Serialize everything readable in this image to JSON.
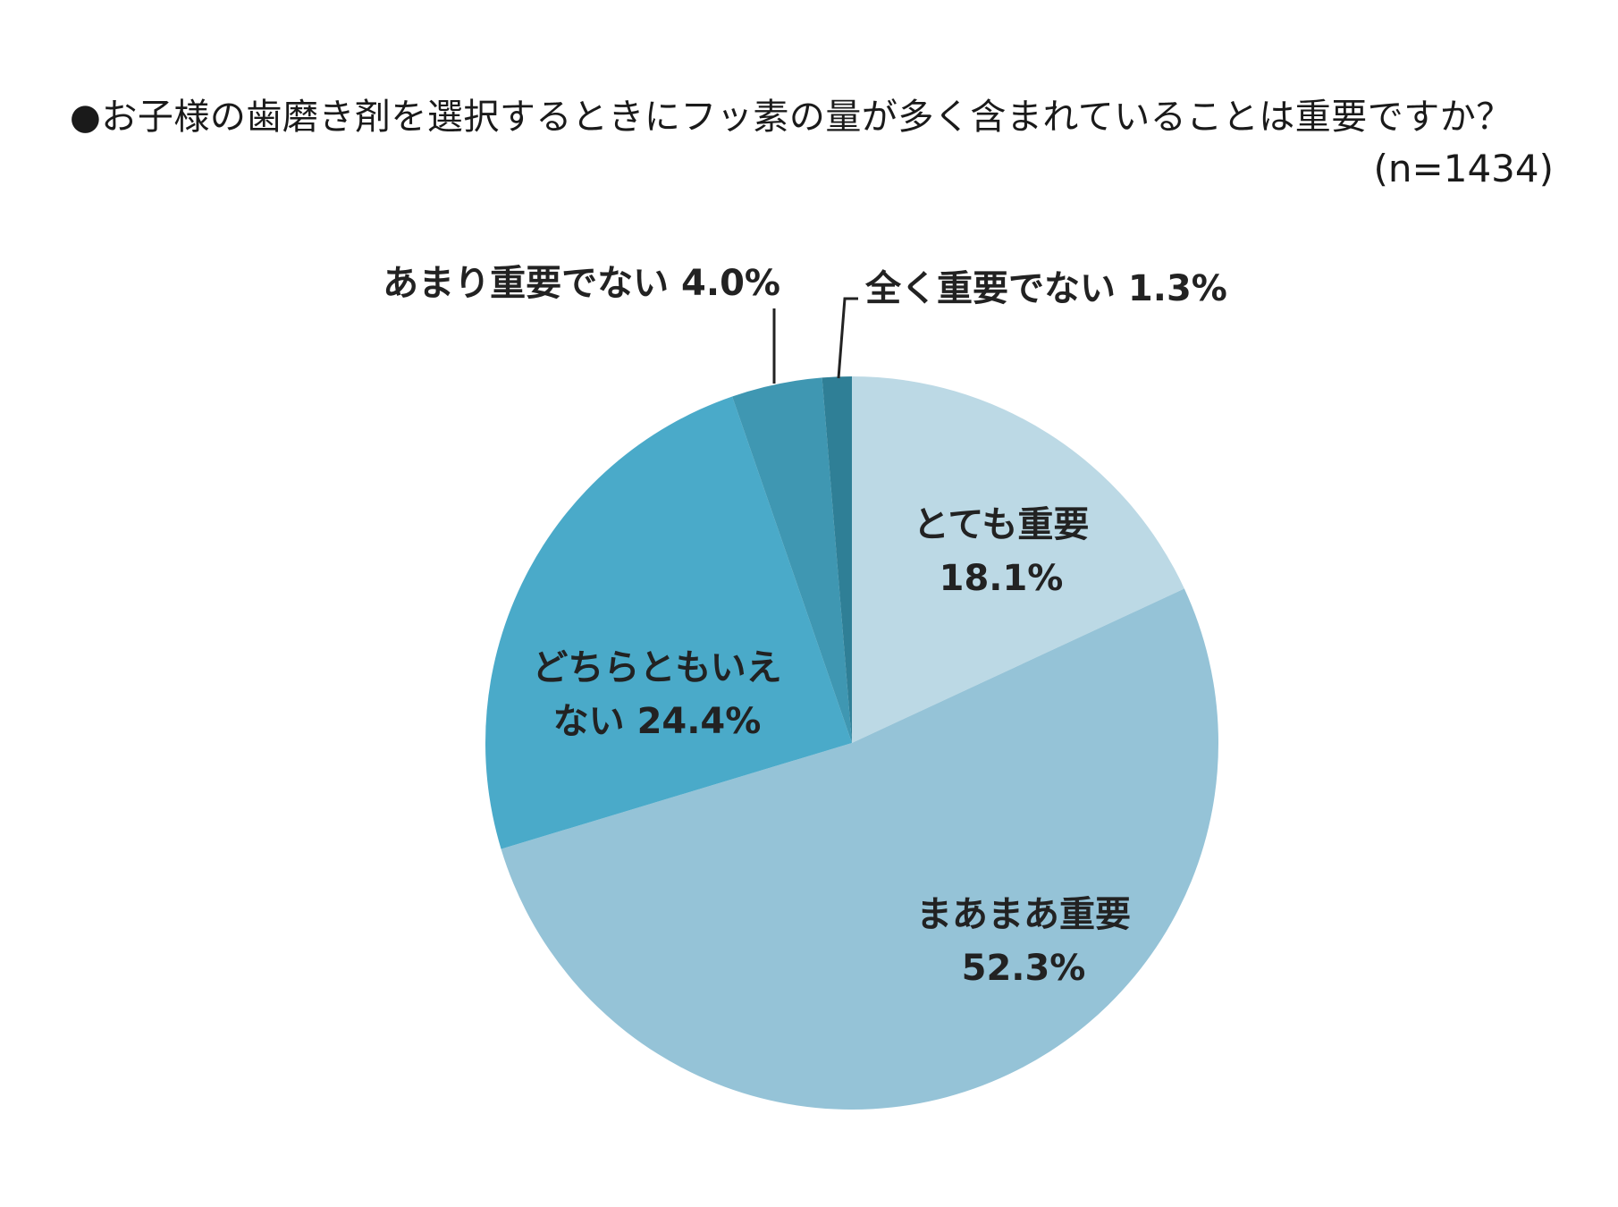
{
  "chart_data": {
    "type": "pie",
    "title": "●お子様の歯磨き剤を選択するときにフッ素の量が多く含まれていることは重要ですか？",
    "subtitle": "(n=1434)",
    "slices": [
      {
        "label": "とても重要",
        "value": 18.1,
        "value_text": "18.1%",
        "color": "#bcd9e5"
      },
      {
        "label": "まあまあ重要",
        "value": 52.3,
        "value_text": "52.3%",
        "color": "#95c3d7"
      },
      {
        "label": "どちらともいえない",
        "value": 24.4,
        "value_text": "24.4%",
        "color": "#4aaac9"
      },
      {
        "label": "あまり重要でない",
        "value": 4.0,
        "value_text": "4.0%",
        "color": "#3f97b2"
      },
      {
        "label": "全く重要でない",
        "value": 1.3,
        "value_text": "1.3%",
        "color": "#2f7f96"
      }
    ]
  }
}
